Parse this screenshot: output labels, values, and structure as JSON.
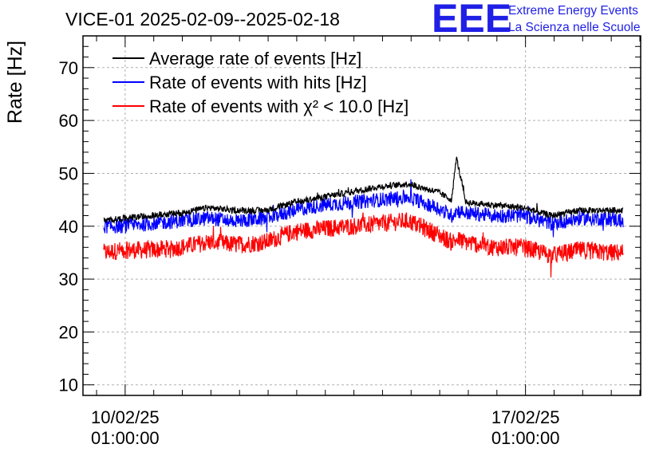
{
  "title": "VICE-01 2025-02-09--2025-02-18",
  "logo": {
    "letters": "EEE",
    "line1": "Extreme Energy Events",
    "line2": "La Scienza nelle Scuole"
  },
  "colors": {
    "average": "#000000",
    "hits": "#0000ff",
    "chi2": "#ff0000",
    "grid": "#b0b0b0",
    "logo": "#1f1fe6"
  },
  "chart_data": {
    "type": "line",
    "title": "VICE-01 2025-02-09--2025-02-18",
    "ylabel": "Rate [Hz]",
    "xlabel": "",
    "ylim": [
      8,
      76
    ],
    "yticks": [
      10,
      20,
      30,
      40,
      50,
      60,
      70
    ],
    "xlim": [
      "2025-02-09T07:18",
      "2025-02-19T01:20"
    ],
    "xticks": [
      {
        "date": "10/02/25",
        "time": "01:00:00"
      },
      {
        "date": "17/02/25",
        "time": "01:00:00"
      }
    ],
    "grid": true,
    "legend_position": "top-left",
    "series": [
      {
        "name": "Average rate of events [Hz]",
        "color": "#000000",
        "x": [
          "2025-02-09T16:00",
          "2025-02-10T00:00",
          "2025-02-10T12:00",
          "2025-02-11T00:00",
          "2025-02-11T12:00",
          "2025-02-12T00:00",
          "2025-02-12T12:00",
          "2025-02-13T00:00",
          "2025-02-13T12:00",
          "2025-02-14T00:00",
          "2025-02-14T12:00",
          "2025-02-15T00:00",
          "2025-02-15T12:00",
          "2025-02-15T18:00",
          "2025-02-15T20:00",
          "2025-02-16T00:00",
          "2025-02-16T12:00",
          "2025-02-17T00:00",
          "2025-02-17T12:00",
          "2025-02-18T00:00",
          "2025-02-18T12:00",
          "2025-02-18T18:00"
        ],
        "values": [
          41,
          41.5,
          42,
          42.5,
          43.5,
          43,
          43,
          44.5,
          45.5,
          46.5,
          47.5,
          48,
          46.5,
          45,
          53,
          44.5,
          44,
          43.5,
          42,
          43,
          43,
          43
        ]
      },
      {
        "name": "Rate of events with hits [Hz]",
        "color": "#0000ff",
        "x": [
          "2025-02-09T16:00",
          "2025-02-10T00:00",
          "2025-02-10T12:00",
          "2025-02-11T00:00",
          "2025-02-11T12:00",
          "2025-02-12T00:00",
          "2025-02-12T12:00",
          "2025-02-13T00:00",
          "2025-02-13T12:00",
          "2025-02-14T00:00",
          "2025-02-14T12:00",
          "2025-02-15T00:00",
          "2025-02-15T12:00",
          "2025-02-15T18:00",
          "2025-02-15T20:00",
          "2025-02-16T00:00",
          "2025-02-16T12:00",
          "2025-02-17T00:00",
          "2025-02-17T12:00",
          "2025-02-18T00:00",
          "2025-02-18T12:00",
          "2025-02-18T18:00"
        ],
        "values": [
          40,
          40,
          40.5,
          41,
          41.5,
          41,
          41.5,
          43,
          44,
          44.5,
          45,
          45.5,
          43.5,
          42,
          43,
          42.5,
          42,
          42,
          40.5,
          41.5,
          41.5,
          41
        ]
      },
      {
        "name": "Rate of events with χ² < 10.0 [Hz]",
        "color": "#ff0000",
        "x": [
          "2025-02-09T16:00",
          "2025-02-10T00:00",
          "2025-02-10T12:00",
          "2025-02-11T00:00",
          "2025-02-11T12:00",
          "2025-02-12T00:00",
          "2025-02-12T12:00",
          "2025-02-13T00:00",
          "2025-02-13T12:00",
          "2025-02-14T00:00",
          "2025-02-14T12:00",
          "2025-02-15T00:00",
          "2025-02-15T12:00",
          "2025-02-15T18:00",
          "2025-02-15T20:00",
          "2025-02-16T00:00",
          "2025-02-16T12:00",
          "2025-02-17T00:00",
          "2025-02-17T12:00",
          "2025-02-18T00:00",
          "2025-02-18T12:00",
          "2025-02-18T18:00"
        ],
        "values": [
          35,
          35.5,
          35.5,
          36,
          37,
          36.5,
          37,
          39,
          39.5,
          40,
          40.5,
          41,
          38.5,
          37,
          37.5,
          37,
          36,
          36,
          34.5,
          35.5,
          35,
          35
        ]
      }
    ]
  }
}
